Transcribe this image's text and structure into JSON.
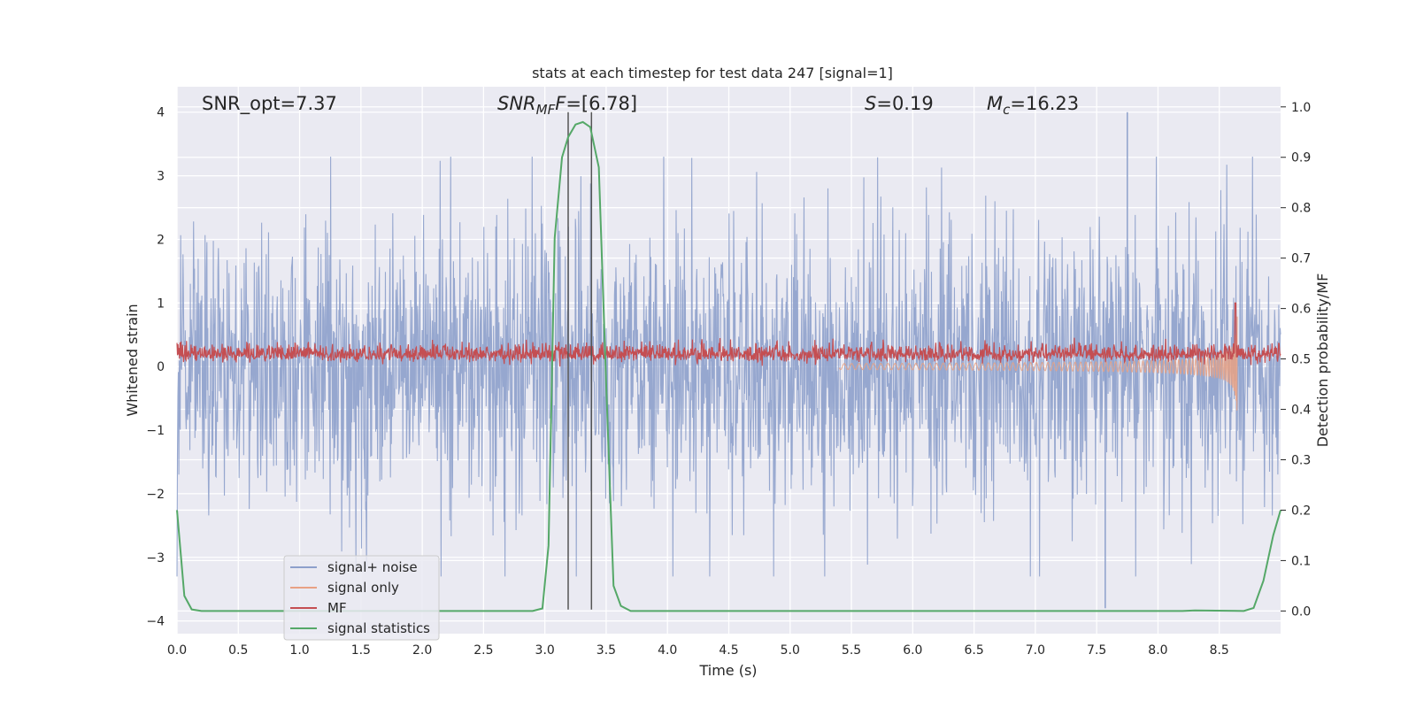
{
  "chart_data": {
    "type": "line",
    "title": "stats at each timestep for test data 247 [signal=1]",
    "xlabel": "Time (s)",
    "ylabel": "Whitened strain",
    "y2label": "Detection probability/MF",
    "xlim": [
      0.0,
      9.0
    ],
    "ylim": [
      -4.2,
      4.4
    ],
    "y2lim": [
      -0.045,
      1.04
    ],
    "x_ticks": [
      "0.0",
      "0.5",
      "1.0",
      "1.5",
      "2.0",
      "2.5",
      "3.0",
      "3.5",
      "4.0",
      "4.5",
      "5.0",
      "5.5",
      "6.0",
      "6.5",
      "7.0",
      "7.5",
      "8.0",
      "8.5"
    ],
    "y_ticks": [
      "4",
      "3",
      "2",
      "1",
      "0",
      "−1",
      "−2",
      "−3",
      "−4"
    ],
    "y2_ticks": [
      "1.0",
      "0.9",
      "0.8",
      "0.7",
      "0.6",
      "0.5",
      "0.4",
      "0.3",
      "0.2",
      "0.1",
      "0.0"
    ],
    "grid": true,
    "legend_position": "lower-left",
    "annotations": {
      "snr_opt": "SNR_opt=7.37",
      "snr_mf_name": "SNR",
      "snr_mf_sub": "MF",
      "snr_mf_value": "=[6.78]",
      "spin_name": "S",
      "spin_value": "=0.19",
      "mc_name": "M",
      "mc_sub": "c",
      "mc_value": "=16.23"
    },
    "vertical_lines": [
      3.19,
      3.38
    ],
    "series": [
      {
        "name": "signal+ noise",
        "color": "#8da0cb",
        "description_values": {
          "band_low": -1.3,
          "band_high": 1.3,
          "peak_max": 4.0,
          "peak_min": -3.8
        }
      },
      {
        "name": "signal only",
        "color": "#e8a184",
        "chirp_end": 8.65
      },
      {
        "name": "MF",
        "color": "#c44e52",
        "mean": 0.19,
        "spike_at": 8.63,
        "spike_value": 1.0
      },
      {
        "name": "signal statistics",
        "color": "#55a868",
        "x": [
          0.0,
          0.06,
          0.12,
          0.2,
          0.4,
          2.9,
          2.98,
          3.03,
          3.08,
          3.14,
          3.19,
          3.25,
          3.31,
          3.37,
          3.44,
          3.5,
          3.56,
          3.62,
          3.7,
          3.85,
          8.2,
          8.3,
          8.7,
          8.78,
          8.86,
          8.94,
          9.0
        ],
        "y": [
          0.2,
          0.03,
          0.003,
          0.0,
          0.0,
          0.0,
          0.005,
          0.13,
          0.74,
          0.9,
          0.94,
          0.965,
          0.97,
          0.96,
          0.88,
          0.45,
          0.05,
          0.01,
          0.0,
          0.0,
          0.0,
          0.001,
          0.0,
          0.006,
          0.06,
          0.15,
          0.2
        ]
      }
    ]
  }
}
